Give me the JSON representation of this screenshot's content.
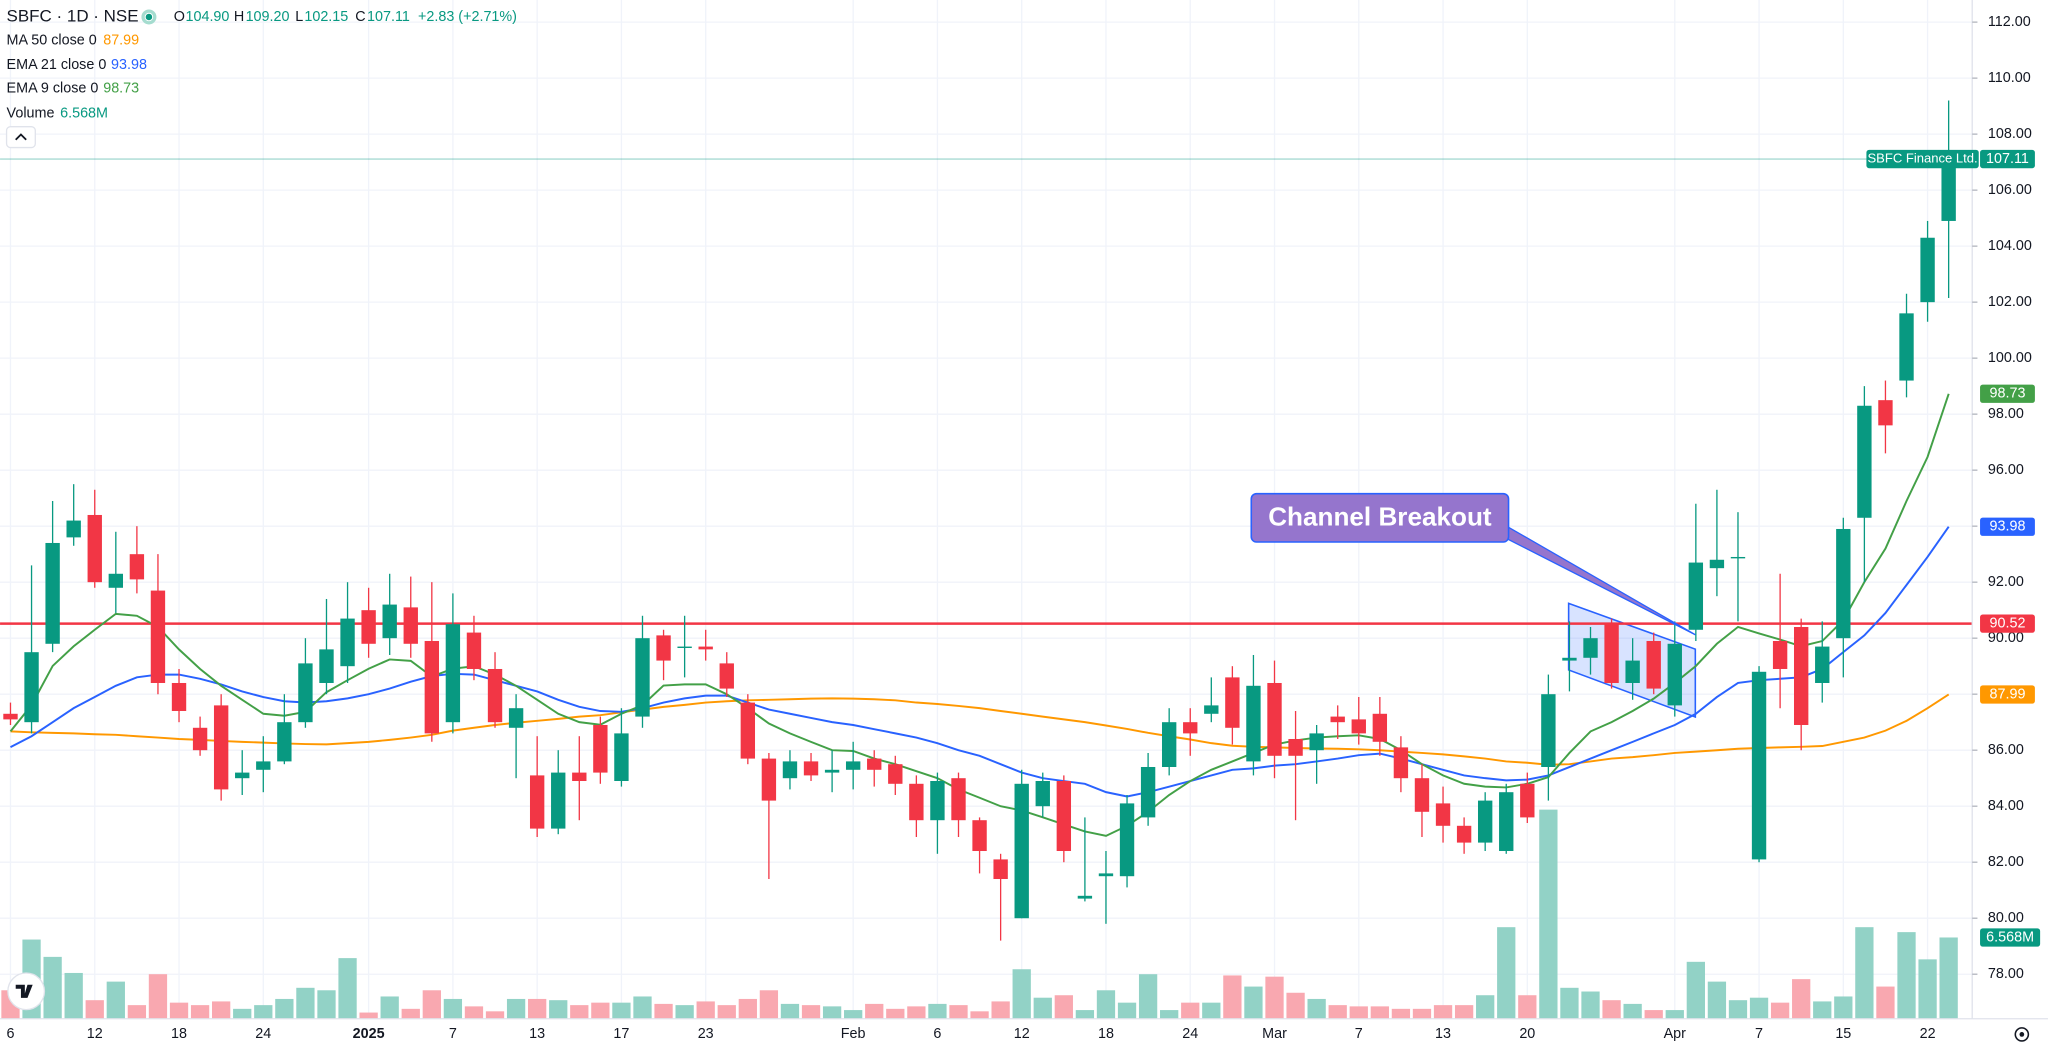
{
  "chart_data": {
    "type": "candlestick",
    "symbol": "SBFC · 1D · NSE",
    "ohlc_letters": [
      "O",
      "H",
      "L",
      "C"
    ],
    "ohlc_labels": [
      "104.90",
      "109.20",
      "102.15",
      "107.11"
    ],
    "change_label": "+2.83 (+2.71%)",
    "categories": [
      "6",
      null,
      null,
      null,
      "12",
      null,
      null,
      null,
      "18",
      null,
      null,
      null,
      "24",
      null,
      null,
      null,
      null,
      "2025",
      null,
      null,
      null,
      "7",
      null,
      null,
      null,
      "13",
      null,
      null,
      null,
      "17",
      null,
      null,
      null,
      "23",
      null,
      null,
      null,
      null,
      null,
      null,
      "Feb",
      null,
      null,
      null,
      "6",
      null,
      null,
      null,
      "12",
      null,
      null,
      null,
      "18",
      null,
      null,
      null,
      "24",
      null,
      null,
      null,
      "Mar",
      null,
      null,
      null,
      "7",
      null,
      null,
      null,
      "13",
      null,
      null,
      null,
      "20",
      null,
      null,
      null,
      null,
      null,
      null,
      "Apr",
      null,
      null,
      null,
      "7",
      null,
      null,
      null,
      "15",
      null,
      null,
      null,
      "22",
      null
    ],
    "open": [
      87.3,
      87.0,
      89.8,
      93.6,
      94.4,
      91.8,
      93.0,
      91.7,
      88.4,
      86.8,
      87.6,
      85.0,
      85.3,
      85.6,
      87.0,
      88.4,
      89.0,
      91.0,
      90.0,
      91.1,
      89.9,
      87.0,
      90.2,
      88.9,
      86.8,
      85.1,
      83.2,
      85.2,
      86.9,
      84.9,
      87.2,
      90.1,
      89.65,
      89.7,
      89.1,
      87.7,
      85.7,
      85.0,
      85.6,
      85.2,
      85.3,
      85.7,
      85.5,
      84.8,
      83.5,
      85.0,
      83.5,
      82.1,
      80.0,
      84.0,
      84.9,
      80.7,
      81.5,
      81.5,
      83.6,
      85.4,
      87.0,
      87.3,
      88.6,
      85.6,
      88.4,
      86.4,
      86.0,
      87.2,
      87.1,
      87.3,
      86.1,
      85.0,
      84.1,
      83.3,
      82.7,
      82.4,
      84.8,
      85.4,
      89.2,
      89.3,
      90.5,
      88.4,
      89.9,
      87.6,
      90.3,
      92.5,
      92.85,
      82.1,
      89.9,
      90.4,
      88.4,
      90.0,
      94.3,
      98.5,
      99.2,
      102.0,
      104.9
    ],
    "high": [
      87.7,
      92.6,
      94.9,
      95.5,
      95.3,
      93.8,
      94.0,
      93.0,
      88.9,
      87.2,
      88.0,
      86.0,
      86.5,
      88.0,
      90.0,
      91.4,
      92.0,
      91.8,
      92.3,
      92.2,
      92.0,
      91.6,
      90.8,
      89.5,
      88.0,
      86.5,
      86.0,
      86.5,
      87.2,
      87.5,
      90.8,
      90.3,
      90.8,
      90.3,
      89.5,
      88.0,
      85.9,
      86.0,
      85.9,
      86.0,
      86.3,
      86.0,
      85.8,
      85.1,
      85.2,
      85.2,
      83.6,
      82.3,
      85.3,
      85.2,
      85.1,
      83.6,
      82.4,
      84.4,
      85.9,
      87.5,
      87.5,
      88.6,
      89.0,
      89.4,
      89.2,
      87.4,
      86.9,
      87.6,
      87.9,
      87.9,
      86.5,
      85.5,
      84.7,
      83.6,
      84.5,
      84.8,
      85.2,
      88.7,
      90.6,
      90.4,
      90.7,
      90.0,
      90.2,
      90.6,
      94.8,
      95.3,
      94.5,
      89.0,
      92.3,
      90.7,
      90.6,
      94.3,
      99.0,
      99.2,
      102.3,
      104.9,
      109.2
    ],
    "low": [
      86.9,
      86.6,
      89.5,
      93.3,
      91.8,
      90.9,
      91.6,
      88.0,
      87.0,
      85.8,
      84.2,
      84.4,
      84.5,
      85.5,
      86.8,
      88.0,
      88.4,
      89.3,
      89.4,
      89.3,
      86.3,
      86.6,
      88.5,
      86.8,
      85.0,
      82.9,
      83.0,
      83.5,
      84.8,
      84.7,
      86.8,
      88.5,
      88.6,
      89.2,
      87.9,
      85.5,
      81.4,
      84.6,
      84.9,
      84.5,
      84.6,
      84.7,
      84.4,
      82.9,
      82.3,
      82.9,
      81.6,
      79.2,
      80.0,
      83.6,
      82.0,
      80.6,
      79.8,
      81.1,
      83.3,
      85.1,
      85.8,
      87.0,
      86.2,
      85.1,
      85.0,
      83.5,
      84.8,
      86.4,
      86.2,
      85.8,
      84.5,
      82.9,
      82.7,
      82.3,
      82.4,
      82.3,
      83.4,
      84.2,
      88.1,
      88.7,
      88.2,
      87.8,
      88.0,
      87.2,
      89.9,
      91.5,
      90.6,
      82.0,
      87.5,
      86.0,
      87.7,
      88.6,
      92.0,
      96.6,
      98.6,
      101.3,
      102.15
    ],
    "close": [
      87.1,
      89.5,
      93.4,
      94.2,
      92.0,
      92.3,
      92.1,
      88.4,
      87.4,
      86.0,
      84.6,
      85.2,
      85.6,
      87.0,
      89.1,
      89.6,
      90.7,
      89.8,
      91.2,
      89.8,
      86.6,
      90.5,
      88.9,
      87.0,
      87.5,
      83.2,
      85.2,
      84.9,
      85.2,
      86.6,
      90.0,
      89.2,
      89.7,
      89.6,
      88.2,
      85.7,
      84.2,
      85.6,
      85.1,
      85.3,
      85.6,
      85.3,
      84.8,
      83.5,
      84.9,
      83.5,
      82.4,
      81.4,
      84.8,
      84.9,
      82.4,
      80.8,
      81.6,
      84.1,
      85.4,
      87.0,
      86.6,
      87.6,
      86.8,
      88.3,
      85.8,
      85.8,
      86.6,
      87.0,
      86.6,
      86.3,
      85.0,
      83.8,
      83.3,
      82.7,
      84.2,
      84.5,
      83.6,
      88.0,
      89.3,
      90.0,
      88.4,
      89.2,
      88.2,
      89.8,
      92.7,
      92.8,
      92.9,
      88.8,
      88.9,
      86.9,
      89.7,
      93.9,
      98.3,
      97.6,
      101.6,
      104.3,
      107.11
    ],
    "volume_name": "Volume",
    "volume": [
      2.3,
      6.4,
      5.0,
      3.7,
      1.5,
      3.0,
      1.1,
      3.6,
      1.3,
      1.1,
      1.4,
      0.8,
      1.1,
      1.6,
      2.5,
      2.3,
      4.9,
      0.5,
      1.8,
      0.8,
      2.3,
      1.6,
      1.0,
      0.6,
      1.6,
      1.6,
      1.5,
      1.1,
      1.3,
      1.3,
      1.8,
      1.2,
      1.1,
      1.4,
      1.1,
      1.6,
      2.3,
      1.2,
      1.1,
      1.0,
      0.7,
      1.2,
      0.8,
      1.0,
      1.2,
      1.1,
      0.6,
      1.4,
      4.0,
      1.7,
      1.9,
      0.7,
      2.3,
      1.3,
      3.6,
      0.7,
      1.3,
      1.3,
      3.5,
      2.6,
      3.4,
      2.1,
      1.6,
      1.1,
      1.0,
      1.0,
      0.8,
      0.8,
      1.1,
      1.1,
      1.9,
      7.4,
      1.9,
      16.9,
      2.5,
      2.2,
      1.5,
      1.2,
      0.7,
      0.7,
      4.6,
      3.0,
      1.5,
      1.7,
      1.3,
      3.2,
      1.4,
      1.8,
      7.4,
      2.6,
      7.0,
      4.8,
      6.568
    ],
    "volume_last_label": "6.568M",
    "volume_ylim": [
      0,
      19
    ],
    "up_color": "#089981",
    "down_color": "#f23645",
    "up_volume_color": "#92d2c6",
    "down_volume_color": "#f9a8b0",
    "lines": [
      {
        "name": "MA 50 close 0",
        "color": "#ff9800",
        "values": [
          86.67,
          86.64,
          86.62,
          86.6,
          86.57,
          86.55,
          86.5,
          86.45,
          86.4,
          86.37,
          86.33,
          86.3,
          86.27,
          86.24,
          86.22,
          86.21,
          86.25,
          86.3,
          86.37,
          86.45,
          86.55,
          86.7,
          86.8,
          86.9,
          86.98,
          87.05,
          87.12,
          87.2,
          87.25,
          87.35,
          87.45,
          87.55,
          87.62,
          87.7,
          87.75,
          87.78,
          87.8,
          87.82,
          87.84,
          87.85,
          87.84,
          87.82,
          87.78,
          87.7,
          87.65,
          87.58,
          87.5,
          87.4,
          87.3,
          87.2,
          87.1,
          87.0,
          86.88,
          86.76,
          86.62,
          86.5,
          86.38,
          86.25,
          86.16,
          86.12,
          86.1,
          86.08,
          86.06,
          86.05,
          86.03,
          86.0,
          85.95,
          85.9,
          85.85,
          85.78,
          85.7,
          85.6,
          85.55,
          85.48,
          85.5,
          85.6,
          85.7,
          85.75,
          85.82,
          85.9,
          85.95,
          86.0,
          86.05,
          86.08,
          86.1,
          86.12,
          86.15,
          86.3,
          86.45,
          86.7,
          87.05,
          87.5,
          87.99
        ]
      },
      {
        "name": "EMA 21 close 0",
        "color": "#2962ff",
        "values": [
          86.11,
          86.5,
          87.0,
          87.5,
          87.9,
          88.3,
          88.6,
          88.7,
          88.7,
          88.55,
          88.35,
          88.1,
          87.9,
          87.75,
          87.7,
          87.75,
          87.85,
          88.0,
          88.2,
          88.45,
          88.65,
          88.73,
          88.7,
          88.5,
          88.3,
          88.1,
          87.8,
          87.55,
          87.4,
          87.37,
          87.5,
          87.7,
          87.85,
          87.95,
          87.95,
          87.7,
          87.45,
          87.3,
          87.15,
          87.0,
          86.9,
          86.75,
          86.6,
          86.45,
          86.25,
          86.0,
          85.8,
          85.5,
          85.2,
          85.0,
          84.9,
          84.8,
          84.5,
          84.35,
          84.5,
          84.7,
          84.9,
          85.1,
          85.3,
          85.35,
          85.45,
          85.5,
          85.6,
          85.7,
          85.82,
          85.88,
          85.7,
          85.5,
          85.3,
          85.1,
          85.0,
          84.92,
          84.95,
          85.1,
          85.4,
          85.7,
          86.0,
          86.3,
          86.6,
          86.9,
          87.3,
          87.9,
          88.4,
          88.5,
          88.55,
          88.6,
          88.9,
          89.5,
          90.1,
          90.9,
          91.9,
          92.9,
          93.98
        ]
      },
      {
        "name": "EMA 9 close 0",
        "color": "#43a047",
        "values": [
          86.67,
          87.61,
          89.01,
          89.71,
          90.3,
          90.87,
          90.8,
          90.4,
          89.6,
          88.9,
          88.3,
          87.8,
          87.3,
          87.23,
          87.37,
          88.07,
          88.5,
          88.91,
          89.24,
          89.19,
          88.63,
          88.91,
          89.0,
          88.7,
          88.3,
          87.8,
          87.3,
          87.0,
          86.91,
          87.3,
          87.61,
          88.31,
          88.35,
          88.35,
          88.0,
          87.5,
          86.95,
          86.6,
          86.3,
          86.0,
          85.97,
          85.7,
          85.5,
          85.25,
          85.0,
          84.6,
          84.3,
          84.0,
          83.85,
          83.6,
          83.35,
          83.1,
          82.94,
          83.3,
          83.8,
          84.4,
          84.9,
          85.3,
          85.6,
          85.9,
          86.2,
          86.35,
          86.45,
          86.5,
          86.53,
          86.4,
          86.0,
          85.5,
          85.1,
          84.8,
          84.7,
          84.67,
          84.8,
          85.04,
          85.9,
          86.67,
          87.0,
          87.4,
          87.84,
          88.4,
          89.01,
          89.8,
          90.4,
          90.17,
          89.95,
          89.71,
          89.9,
          90.64,
          92.0,
          93.2,
          94.9,
          96.47,
          98.73
        ]
      }
    ],
    "hline": {
      "value": 90.52,
      "color": "#f23645"
    },
    "price_line_name": "SBFC Finance Ltd.",
    "annotation": "Channel Breakout",
    "ylim": [
      76.41,
      112.79
    ],
    "yticks": [
      {
        "value": 78,
        "label": "78.00"
      },
      {
        "value": 80,
        "label": "80.00"
      },
      {
        "value": 82,
        "label": "82.00"
      },
      {
        "value": 84,
        "label": "84.00"
      },
      {
        "value": 86,
        "label": "86.00"
      },
      {
        "value": 88,
        "label": "88.00"
      },
      {
        "value": 90,
        "label": "90.00"
      },
      {
        "value": 92,
        "label": "92.00"
      },
      {
        "value": 94,
        "label": "94.00"
      },
      {
        "value": 96,
        "label": "96.00"
      },
      {
        "value": 98,
        "label": "98.00"
      },
      {
        "value": 100,
        "label": "100.00"
      },
      {
        "value": 102,
        "label": "102.00"
      },
      {
        "value": 104,
        "label": "104.00"
      },
      {
        "value": 106,
        "label": "106.00"
      },
      {
        "value": 108,
        "label": "108.00"
      },
      {
        "value": 110,
        "label": "110.00"
      },
      {
        "value": 112,
        "label": "112.00"
      }
    ],
    "grid": true
  }
}
